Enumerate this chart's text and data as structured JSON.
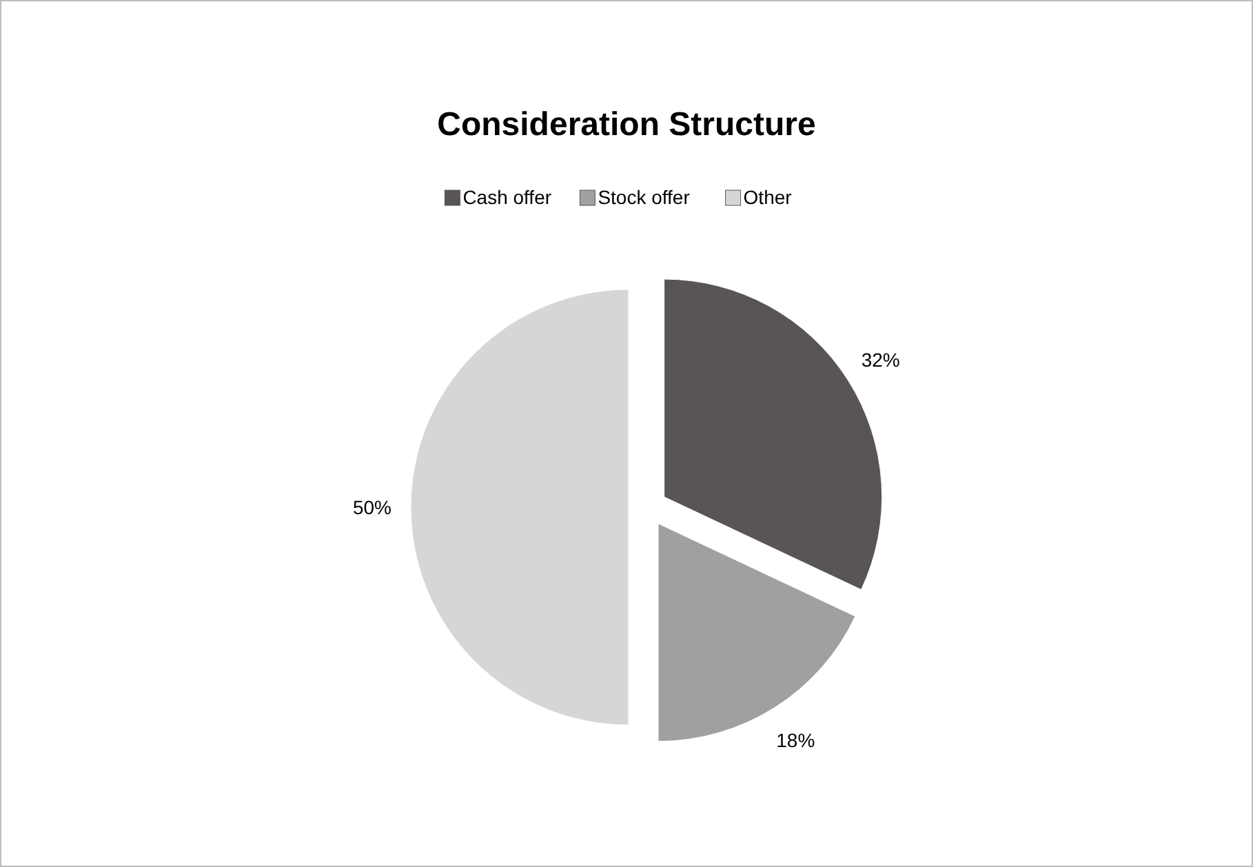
{
  "chart_data": {
    "type": "pie",
    "title": "Consideration Structure",
    "categories": [
      "Cash offer",
      "Stock offer",
      "Other"
    ],
    "values": [
      32,
      18,
      50
    ],
    "colors": [
      "#5a5555",
      "#a0a0a0",
      "#d6d6d6"
    ],
    "value_labels": [
      "32%",
      "18%",
      "50%"
    ],
    "legend": "top"
  }
}
